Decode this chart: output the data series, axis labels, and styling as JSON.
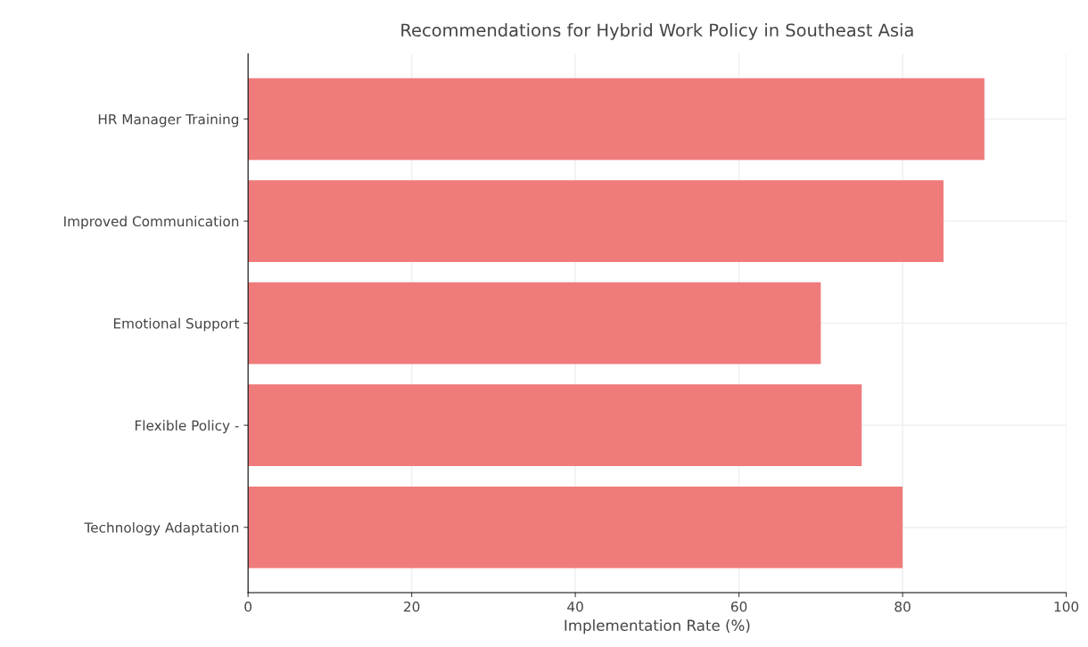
{
  "chart_data": {
    "type": "bar",
    "orientation": "horizontal",
    "title": "Recommendations for Hybrid Work Policy in Southeast Asia",
    "xlabel": "Implementation Rate (%)",
    "categories": [
      "HR Manager Training",
      "Improved Communication",
      "Emotional Support",
      "Flexible Policy -",
      "Technology Adaptation"
    ],
    "values": [
      90,
      85,
      70,
      75,
      80
    ],
    "color": "#f07b7b",
    "xlim": [
      0,
      100
    ],
    "xticks": [
      0,
      20,
      40,
      60,
      80,
      100
    ],
    "grid": true
  }
}
